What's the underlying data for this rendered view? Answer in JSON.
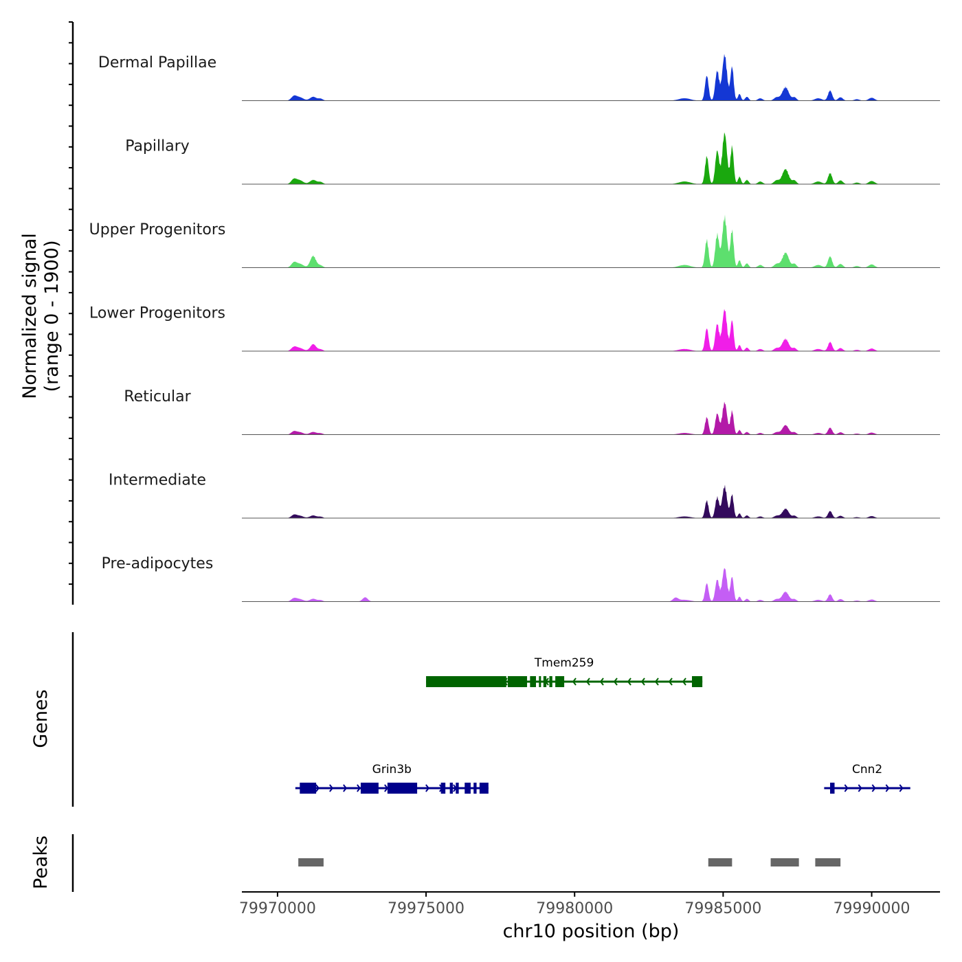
{
  "chart_data": {
    "type": "area",
    "title": "",
    "xlabel": "chr10 position (bp)",
    "ylabel_line1": "Normalized signal",
    "ylabel_line2": "(range 0 - 1900)",
    "ylim": [
      0,
      1900
    ],
    "xlim": [
      79968800,
      79992300
    ],
    "x_ticks": [
      79970000,
      79975000,
      79980000,
      79985000,
      79990000
    ],
    "x_tick_labels": [
      "79970000",
      "79975000",
      "79980000",
      "79985000",
      "79990000"
    ],
    "tracks": [
      {
        "name": "Dermal Papillae",
        "color": "#1437d4",
        "scale": 0.9
      },
      {
        "name": "Papillary",
        "color": "#1aa80e",
        "scale": 1.0
      },
      {
        "name": "Upper Progenitors",
        "color": "#5ddf6e",
        "scale": 1.0
      },
      {
        "name": "Lower Progenitors",
        "color": "#f01ee8",
        "scale": 0.82
      },
      {
        "name": "Reticular",
        "color": "#b31aa8",
        "scale": 0.63
      },
      {
        "name": "Intermediate",
        "color": "#330a5c",
        "scale": 0.63
      },
      {
        "name": "Pre-adipocytes",
        "color": "#c45ef5",
        "scale": 0.66
      }
    ],
    "peak_profile": [
      {
        "pos": 79970550,
        "h": 0.09,
        "w": 90
      },
      {
        "pos": 79970750,
        "h": 0.07,
        "w": 120
      },
      {
        "pos": 79971200,
        "h": 0.08,
        "w": 110
      },
      {
        "pos": 79971450,
        "h": 0.04,
        "w": 80
      },
      {
        "pos": 79983700,
        "h": 0.05,
        "w": 200
      },
      {
        "pos": 79984450,
        "h": 0.52,
        "w": 60
      },
      {
        "pos": 79984800,
        "h": 0.62,
        "w": 65
      },
      {
        "pos": 79985050,
        "h": 0.95,
        "w": 80
      },
      {
        "pos": 79985300,
        "h": 0.7,
        "w": 55
      },
      {
        "pos": 79985550,
        "h": 0.14,
        "w": 50
      },
      {
        "pos": 79985800,
        "h": 0.08,
        "w": 60
      },
      {
        "pos": 79986250,
        "h": 0.05,
        "w": 80
      },
      {
        "pos": 79986800,
        "h": 0.07,
        "w": 90
      },
      {
        "pos": 79987100,
        "h": 0.28,
        "w": 110
      },
      {
        "pos": 79987400,
        "h": 0.07,
        "w": 70
      },
      {
        "pos": 79988200,
        "h": 0.05,
        "w": 120
      },
      {
        "pos": 79988600,
        "h": 0.21,
        "w": 70
      },
      {
        "pos": 79988950,
        "h": 0.07,
        "w": 80
      },
      {
        "pos": 79989500,
        "h": 0.03,
        "w": 90
      },
      {
        "pos": 79990000,
        "h": 0.06,
        "w": 100
      }
    ],
    "track_extra_peaks": {
      "Upper Progenitors": [
        {
          "pos": 79971200,
          "h": 0.14,
          "w": 90
        }
      ],
      "Lower Progenitors": [
        {
          "pos": 79971200,
          "h": 0.08,
          "w": 90
        }
      ],
      "Pre-adipocytes": [
        {
          "pos": 79972950,
          "h": 0.12,
          "w": 90
        },
        {
          "pos": 79983400,
          "h": 0.1,
          "w": 90
        }
      ]
    }
  },
  "genes": {
    "title": "Genes",
    "items": [
      {
        "name": "Tmem259",
        "strand": "-",
        "color": "#006400",
        "start": 79975000,
        "end": 79984300,
        "exons": [
          [
            79975000,
            79977700
          ],
          [
            79977750,
            79978400
          ],
          [
            79978500,
            79978700
          ],
          [
            79978800,
            79978870
          ],
          [
            79978950,
            79979050
          ],
          [
            79979150,
            79979250
          ],
          [
            79979350,
            79979650
          ],
          [
            79983950,
            79984300
          ]
        ]
      },
      {
        "name": "Grin3b",
        "strand": "+",
        "color": "#00008b",
        "start": 79970600,
        "end": 79977100,
        "exons": [
          [
            79970750,
            79971300
          ],
          [
            79972800,
            79973400
          ],
          [
            79973700,
            79974700
          ],
          [
            79975500,
            79975650
          ],
          [
            79975800,
            79975900
          ],
          [
            79976000,
            79976100
          ],
          [
            79976300,
            79976500
          ],
          [
            79976600,
            79976700
          ],
          [
            79976800,
            79977100
          ]
        ]
      },
      {
        "name": "Cnn2",
        "strand": "+",
        "color": "#00008b",
        "start": 79988400,
        "end": 79991300,
        "exons": [
          [
            79988600,
            79988750
          ]
        ]
      }
    ]
  },
  "peaks": {
    "title": "Peaks",
    "color": "#666666",
    "regions": [
      [
        79970700,
        79971550
      ],
      [
        79984500,
        79985300
      ],
      [
        79986600,
        79987550
      ],
      [
        79988100,
        79988950
      ]
    ]
  }
}
